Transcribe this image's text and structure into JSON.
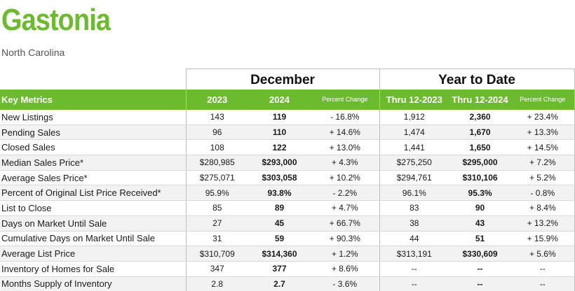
{
  "title": "Gastonia",
  "subtitle": "North Carolina",
  "groups": {
    "month": "December",
    "ytd": "Year to Date"
  },
  "headers": {
    "label": "Key Metrics",
    "m_prev": "2023",
    "m_curr": "2024",
    "m_pct": "Percent Change",
    "y_prev": "Thru 12-2023",
    "y_curr": "Thru 12-2024",
    "y_pct": "Percent Change"
  },
  "rows": [
    {
      "label": "New Listings",
      "m_prev": "143",
      "m_curr": "119",
      "m_pct": "- 16.8%",
      "y_prev": "1,912",
      "y_curr": "2,360",
      "y_pct": "+ 23.4%"
    },
    {
      "label": "Pending Sales",
      "m_prev": "96",
      "m_curr": "110",
      "m_pct": "+ 14.6%",
      "y_prev": "1,474",
      "y_curr": "1,670",
      "y_pct": "+ 13.3%"
    },
    {
      "label": "Closed Sales",
      "m_prev": "108",
      "m_curr": "122",
      "m_pct": "+ 13.0%",
      "y_prev": "1,441",
      "y_curr": "1,650",
      "y_pct": "+ 14.5%"
    },
    {
      "label": "Median Sales Price*",
      "m_prev": "$280,985",
      "m_curr": "$293,000",
      "m_pct": "+ 4.3%",
      "y_prev": "$275,250",
      "y_curr": "$295,000",
      "y_pct": "+ 7.2%"
    },
    {
      "label": "Average Sales Price*",
      "m_prev": "$275,071",
      "m_curr": "$303,058",
      "m_pct": "+ 10.2%",
      "y_prev": "$294,761",
      "y_curr": "$310,106",
      "y_pct": "+ 5.2%"
    },
    {
      "label": "Percent of Original List Price Received*",
      "m_prev": "95.9%",
      "m_curr": "93.8%",
      "m_pct": "- 2.2%",
      "y_prev": "96.1%",
      "y_curr": "95.3%",
      "y_pct": "- 0.8%"
    },
    {
      "label": "List to Close",
      "m_prev": "85",
      "m_curr": "89",
      "m_pct": "+ 4.7%",
      "y_prev": "83",
      "y_curr": "90",
      "y_pct": "+ 8.4%"
    },
    {
      "label": "Days on Market Until Sale",
      "m_prev": "27",
      "m_curr": "45",
      "m_pct": "+ 66.7%",
      "y_prev": "38",
      "y_curr": "43",
      "y_pct": "+ 13.2%"
    },
    {
      "label": "Cumulative Days on Market Until Sale",
      "m_prev": "31",
      "m_curr": "59",
      "m_pct": "+ 90.3%",
      "y_prev": "44",
      "y_curr": "51",
      "y_pct": "+ 15.9%"
    },
    {
      "label": "Average List Price",
      "m_prev": "$310,709",
      "m_curr": "$314,360",
      "m_pct": "+ 1.2%",
      "y_prev": "$313,191",
      "y_curr": "$330,609",
      "y_pct": "+ 5.6%"
    },
    {
      "label": "Inventory of Homes for Sale",
      "m_prev": "347",
      "m_curr": "377",
      "m_pct": "+ 8.6%",
      "y_prev": "--",
      "y_curr": "--",
      "y_pct": "--"
    },
    {
      "label": "Months Supply of Inventory",
      "m_prev": "2.8",
      "m_curr": "2.7",
      "m_pct": "- 3.6%",
      "y_prev": "--",
      "y_curr": "--",
      "y_pct": "--"
    }
  ],
  "colors": {
    "accent": "#6cbb2e",
    "stripe": "#f2f2f2",
    "border": "#bdbdbd"
  }
}
